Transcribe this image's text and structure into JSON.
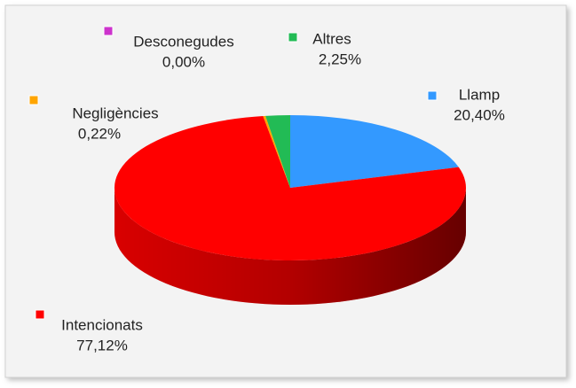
{
  "chart_data": {
    "type": "pie",
    "categories": [
      "Llamp",
      "Intencionats",
      "Negligències",
      "Desconegudes",
      "Altres"
    ],
    "values": [
      20.4,
      77.12,
      0.22,
      0.0,
      2.25
    ],
    "value_labels": [
      "20,40%",
      "77,12%",
      "0,22%",
      "0,00%",
      "2,25%"
    ],
    "colors": [
      "#3399ff",
      "#ff0000",
      "#ffa500",
      "#cc33cc",
      "#22bb55"
    ]
  }
}
